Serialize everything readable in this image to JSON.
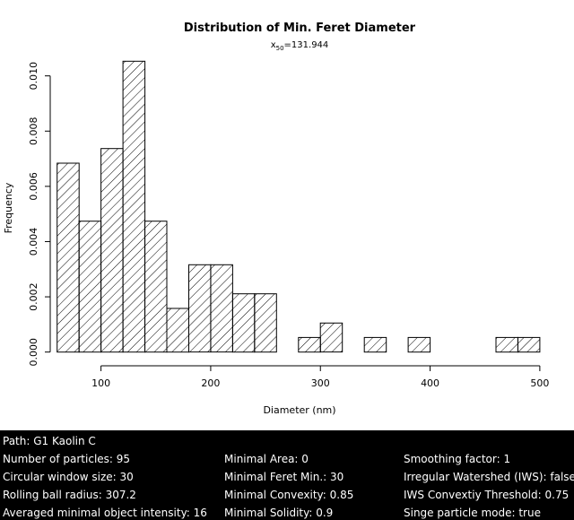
{
  "chart_data": {
    "type": "bar",
    "title": "Distribution of Min. Feret Diameter",
    "subtitle": {
      "label": "x",
      "subscript": "50",
      "value": "=131.944"
    },
    "xlabel": "Diameter (nm)",
    "ylabel": "Frequency",
    "xlim": [
      57,
      505
    ],
    "ylim": [
      -0.0004,
      0.0108
    ],
    "xticks": [
      100,
      200,
      300,
      400,
      500
    ],
    "yticks": [
      0.0,
      0.002,
      0.004,
      0.006,
      0.008,
      0.01
    ],
    "ytick_labels": [
      "0.000",
      "0.002",
      "0.004",
      "0.006",
      "0.008",
      "0.010"
    ],
    "bin_width": 20,
    "bins": [
      {
        "start": 60,
        "value": 0.00684
      },
      {
        "start": 80,
        "value": 0.00474
      },
      {
        "start": 100,
        "value": 0.00737
      },
      {
        "start": 120,
        "value": 0.01053
      },
      {
        "start": 140,
        "value": 0.00474
      },
      {
        "start": 160,
        "value": 0.00158
      },
      {
        "start": 180,
        "value": 0.00316
      },
      {
        "start": 200,
        "value": 0.00316
      },
      {
        "start": 220,
        "value": 0.00211
      },
      {
        "start": 240,
        "value": 0.00211
      },
      {
        "start": 280,
        "value": 0.00053
      },
      {
        "start": 300,
        "value": 0.00105
      },
      {
        "start": 340,
        "value": 0.00053
      },
      {
        "start": 380,
        "value": 0.00053
      },
      {
        "start": 460,
        "value": 0.00053
      },
      {
        "start": 480,
        "value": 0.00053
      }
    ],
    "fill": "diagonal hatch",
    "grid": false,
    "legend": "none"
  },
  "info": {
    "path": "Path: G1 Kaolin C",
    "rows": [
      [
        "Number of particles: 95",
        "Minimal Area: 0",
        "Smoothing factor: 1"
      ],
      [
        "Circular window size: 30",
        "Minimal Feret Min.: 30",
        "Irregular Watershed (IWS): false"
      ],
      [
        "Rolling ball radius: 307.2",
        "Minimal Convexity: 0.85",
        "IWS Convextiy Threshold: 0.75"
      ],
      [
        "Averaged minimal object intensity: 16",
        "Minimal Solidity: 0.9",
        "Singe particle mode: true"
      ]
    ]
  },
  "colors": {
    "background": "#ffffff",
    "panel": "#000000",
    "panel_text": "#ffffff",
    "ink": "#000000"
  }
}
